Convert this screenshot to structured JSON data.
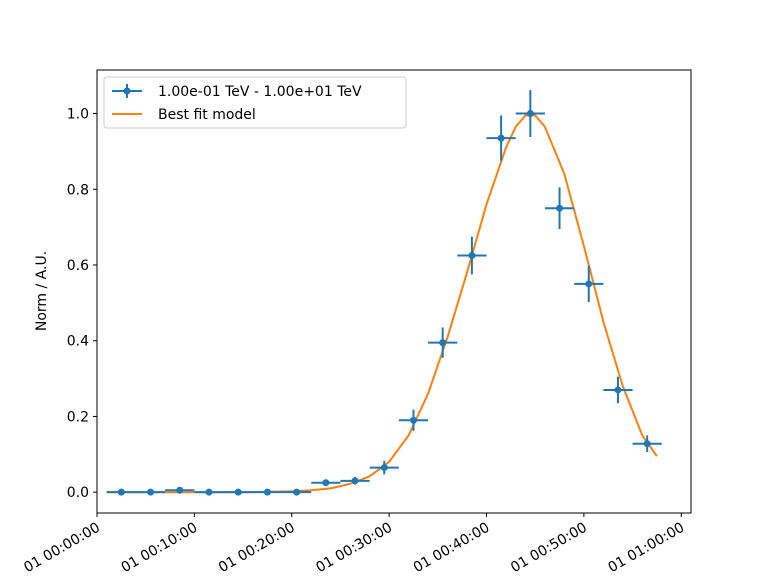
{
  "chart_data": {
    "type": "scatter",
    "title": "",
    "xlabel": "",
    "ylabel": "Norm / A.U.",
    "xlim": [
      "2000-01-01 00:00:00",
      "2000-01-01 01:01:00"
    ],
    "ylim": [
      -0.055,
      1.115
    ],
    "x_ticks": [
      "2000-01-01 00:00:00",
      "2000-01-01 00:10:00",
      "2000-01-01 00:20:00",
      "2000-01-01 00:30:00",
      "2000-01-01 00:40:00",
      "2000-01-01 00:50:00",
      "2000-01-01 01:00:00"
    ],
    "x_tick_labels": [
      "01 00:00:00",
      "01 00:10:00",
      "01 00:20:00",
      "01 00:30:00",
      "01 00:40:00",
      "01 00:50:00",
      "01 01:00:00"
    ],
    "y_ticks": [
      0.0,
      0.2,
      0.4,
      0.6,
      0.8,
      1.0
    ],
    "y_tick_labels": [
      "0.0",
      "0.2",
      "0.4",
      "0.6",
      "0.8",
      "1.0"
    ],
    "grid": false,
    "legend_position": "top-left",
    "series": [
      {
        "name": "1.00e-01 TeV - 1.00e+01 TeV",
        "type": "errorbar",
        "color": "#1f77b4",
        "x": [
          "2000-01-01 00:02:30",
          "2000-01-01 00:05:30",
          "2000-01-01 00:08:30",
          "2000-01-01 00:11:30",
          "2000-01-01 00:14:30",
          "2000-01-01 00:17:30",
          "2000-01-01 00:20:30",
          "2000-01-01 00:23:30",
          "2000-01-01 00:26:30",
          "2000-01-01 00:29:30",
          "2000-01-01 00:32:30",
          "2000-01-01 00:35:30",
          "2000-01-01 00:38:30",
          "2000-01-01 00:41:30",
          "2000-01-01 00:44:30",
          "2000-01-01 00:47:30",
          "2000-01-01 00:50:30",
          "2000-01-01 00:53:30",
          "2000-01-01 00:56:30"
        ],
        "x_err_min": 1.5,
        "y": [
          0.0,
          0.0,
          0.005,
          0.0,
          0.0,
          0.0,
          0.0,
          0.025,
          0.03,
          0.065,
          0.19,
          0.395,
          0.625,
          0.935,
          1.0,
          0.75,
          0.55,
          0.27,
          0.128
        ],
        "y_err": [
          0.002,
          0.002,
          0.004,
          0.002,
          0.002,
          0.002,
          0.002,
          0.008,
          0.01,
          0.018,
          0.028,
          0.04,
          0.05,
          0.06,
          0.062,
          0.055,
          0.048,
          0.035,
          0.022
        ]
      },
      {
        "name": "Best fit model",
        "type": "line",
        "color": "#ff7f0e",
        "x": [
          "2000-01-01 00:01:00",
          "2000-01-01 00:05:00",
          "2000-01-01 00:10:00",
          "2000-01-01 00:15:00",
          "2000-01-01 00:20:00",
          "2000-01-01 00:22:00",
          "2000-01-01 00:24:00",
          "2000-01-01 00:26:00",
          "2000-01-01 00:28:00",
          "2000-01-01 00:30:00",
          "2000-01-01 00:32:00",
          "2000-01-01 00:34:00",
          "2000-01-01 00:36:00",
          "2000-01-01 00:38:00",
          "2000-01-01 00:40:00",
          "2000-01-01 00:42:00",
          "2000-01-01 00:43:00",
          "2000-01-01 00:44:00",
          "2000-01-01 00:45:00",
          "2000-01-01 00:46:00",
          "2000-01-01 00:48:00",
          "2000-01-01 00:50:00",
          "2000-01-01 00:52:00",
          "2000-01-01 00:54:00",
          "2000-01-01 00:56:00",
          "2000-01-01 00:57:30"
        ],
        "y": [
          0.0,
          0.0,
          0.0,
          0.0,
          0.002,
          0.005,
          0.01,
          0.022,
          0.042,
          0.08,
          0.15,
          0.26,
          0.41,
          0.58,
          0.76,
          0.91,
          0.965,
          0.995,
          0.995,
          0.965,
          0.84,
          0.65,
          0.45,
          0.28,
          0.15,
          0.095
        ]
      }
    ]
  }
}
